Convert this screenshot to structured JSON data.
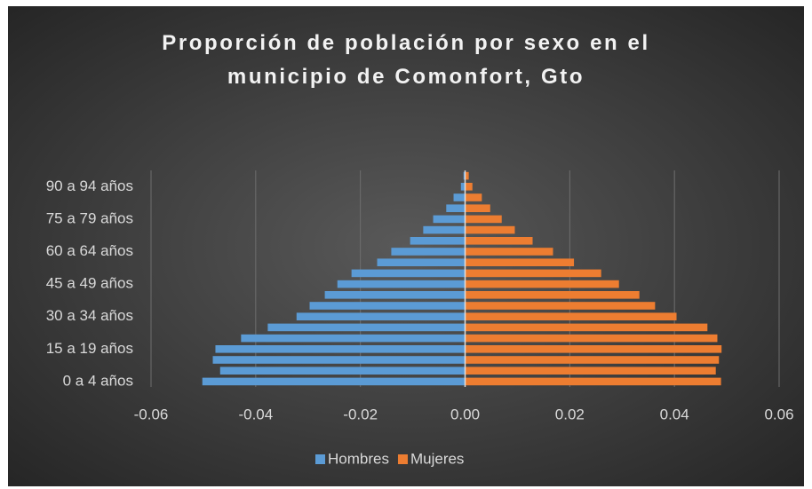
{
  "chart_data": {
    "type": "bar",
    "orientation": "horizontal",
    "title": "Proporción de población por sexo en el municipio de Comonfort, Gto",
    "categories": [
      "0 a 4 años",
      null,
      null,
      "15 a 19 años",
      null,
      null,
      "30 a 34 años",
      null,
      null,
      "45 a 49 años",
      null,
      null,
      "60 a 64 años",
      null,
      null,
      "75 a 79 años",
      null,
      null,
      "90 a 94 años",
      null
    ],
    "series": [
      {
        "name": "Hombres",
        "color": "#5b9bd5",
        "values": [
          -0.0502,
          -0.0468,
          -0.0482,
          -0.0477,
          -0.0428,
          -0.0377,
          -0.0322,
          -0.0297,
          -0.0268,
          -0.0244,
          -0.0217,
          -0.0168,
          -0.0141,
          -0.0105,
          -0.008,
          -0.0061,
          -0.0036,
          -0.0022,
          -0.0008,
          -0.0003
        ]
      },
      {
        "name": "Mujeres",
        "color": "#ed7d31",
        "values": [
          0.0489,
          0.0479,
          0.0485,
          0.049,
          0.0482,
          0.0463,
          0.0404,
          0.0363,
          0.0333,
          0.0294,
          0.026,
          0.0208,
          0.0168,
          0.0129,
          0.0095,
          0.007,
          0.0048,
          0.0032,
          0.0014,
          0.0007
        ]
      }
    ],
    "xlim": [
      -0.06,
      0.06
    ],
    "xticks": [
      -0.06,
      -0.04,
      -0.02,
      {
        "value": 0,
        "label": "0.00"
      },
      0.02,
      0.04,
      0.06
    ],
    "grid": true,
    "legend": "bottom"
  }
}
